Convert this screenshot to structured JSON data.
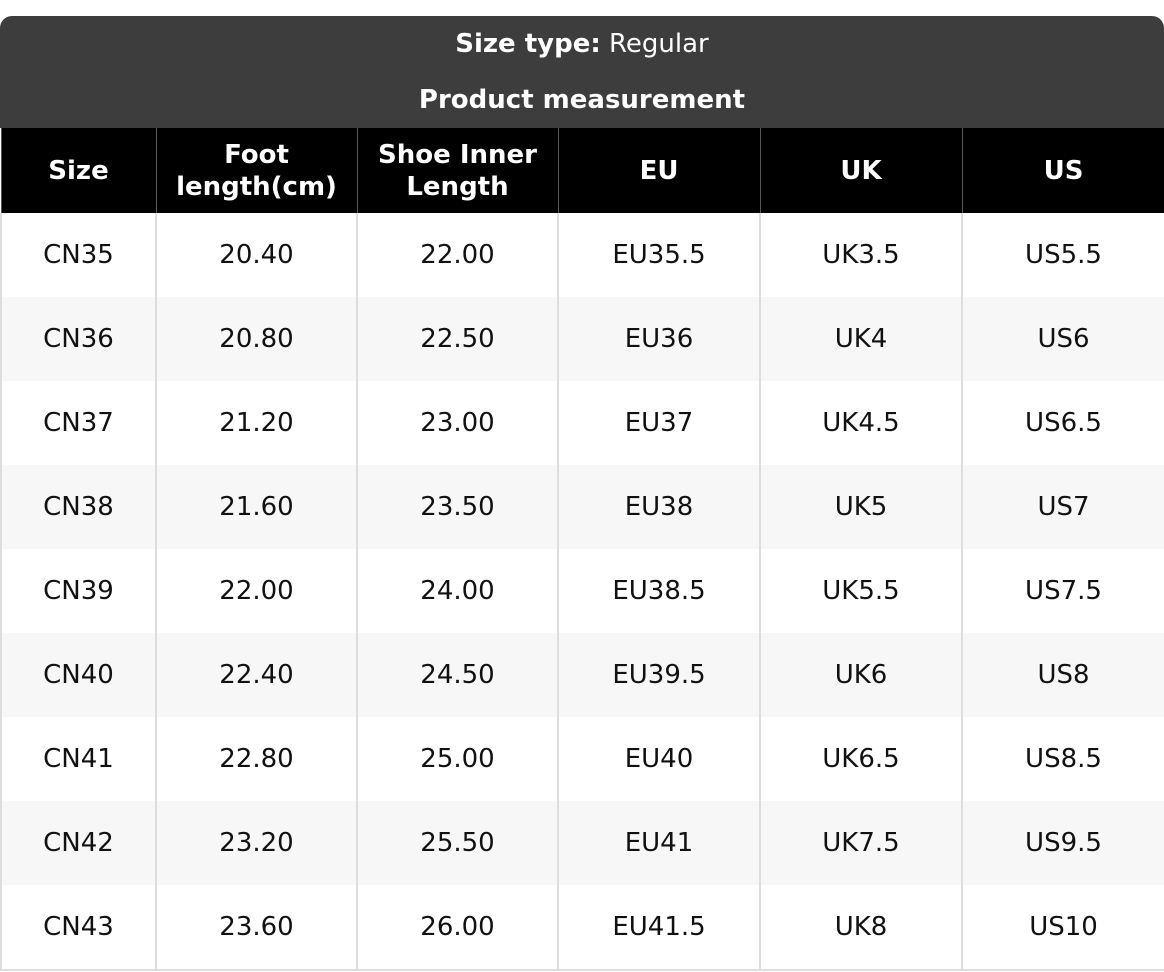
{
  "header": {
    "label": "Size type:",
    "value": "Regular",
    "subtitle": "Product measurement"
  },
  "table": {
    "columns": [
      "Size",
      "Foot length(cm)",
      "Shoe Inner Length",
      "EU",
      "UK",
      "US"
    ],
    "rows": [
      [
        "CN35",
        "20.40",
        "22.00",
        "EU35.5",
        "UK3.5",
        "US5.5"
      ],
      [
        "CN36",
        "20.80",
        "22.50",
        "EU36",
        "UK4",
        "US6"
      ],
      [
        "CN37",
        "21.20",
        "23.00",
        "EU37",
        "UK4.5",
        "US6.5"
      ],
      [
        "CN38",
        "21.60",
        "23.50",
        "EU38",
        "UK5",
        "US7"
      ],
      [
        "CN39",
        "22.00",
        "24.00",
        "EU38.5",
        "UK5.5",
        "US7.5"
      ],
      [
        "CN40",
        "22.40",
        "24.50",
        "EU39.5",
        "UK6",
        "US8"
      ],
      [
        "CN41",
        "22.80",
        "25.00",
        "EU40",
        "UK6.5",
        "US8.5"
      ],
      [
        "CN42",
        "23.20",
        "25.50",
        "EU41",
        "UK7.5",
        "US9.5"
      ],
      [
        "CN43",
        "23.60",
        "26.00",
        "EU41.5",
        "UK8",
        "US10"
      ]
    ]
  }
}
